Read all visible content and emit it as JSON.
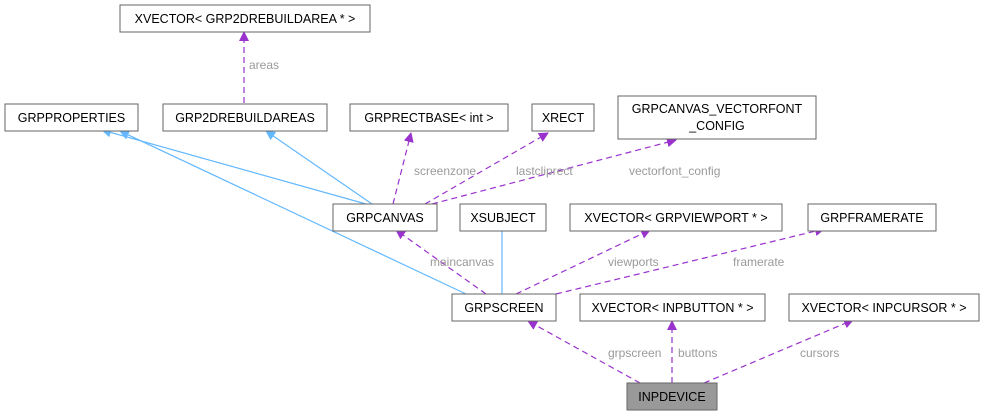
{
  "nodes": {
    "xvector_rebuild": "XVECTOR< GRP2DREBUILDAREA * >",
    "grpproperties": "GRPPROPERTIES",
    "grp2drebuildareas": "GRP2DREBUILDAREAS",
    "grprectbase": "GRPRECTBASE< int >",
    "xrect": "XRECT",
    "vectorfont_line1": "GRPCANVAS_VECTORFONT",
    "vectorfont_line2": "_CONFIG",
    "grpcanvas": "GRPCANVAS",
    "xsubject": "XSUBJECT",
    "xvector_viewport": "XVECTOR< GRPVIEWPORT * >",
    "grpframerate": "GRPFRAMERATE",
    "grpscreen": "GRPSCREEN",
    "xvector_button": "XVECTOR< INPBUTTON * >",
    "xvector_cursor": "XVECTOR< INPCURSOR * >",
    "inpdevice": "INPDEVICE"
  },
  "edge_labels": {
    "areas": "areas",
    "screenzone": "screenzone",
    "lastcliprect": "lastcliprect",
    "vectorfont_config": "vectorfont_config",
    "maincanvas": "maincanvas",
    "viewports": "viewports",
    "framerate": "framerate",
    "grpscreen": "grpscreen",
    "buttons": "buttons",
    "cursors": "cursors"
  },
  "colors": {
    "inheritance_edge": "#63b8ff",
    "usage_edge": "#9a32cd",
    "highlight_node": "#999999"
  }
}
